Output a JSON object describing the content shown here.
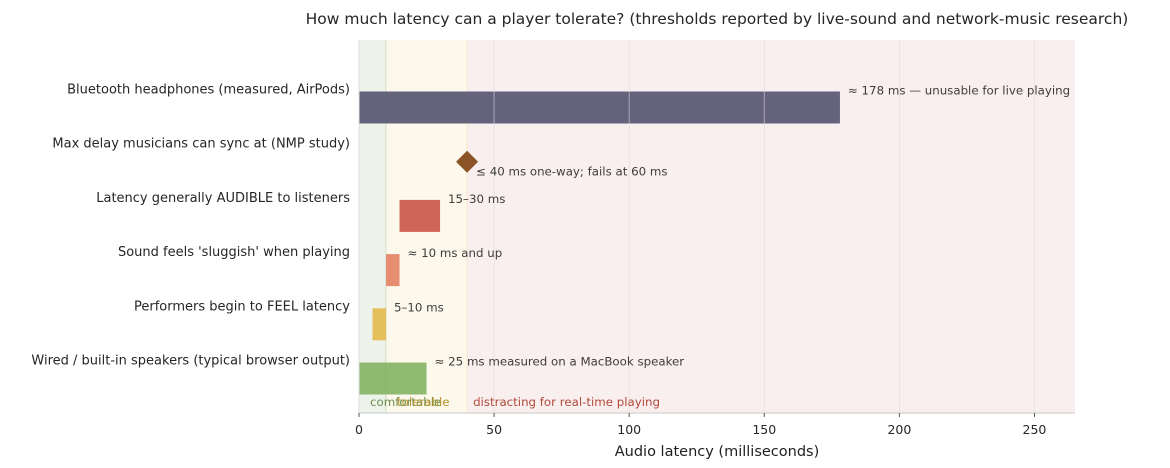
{
  "chart_data": {
    "type": "bar",
    "orientation": "horizontal",
    "title": "How much latency can a player tolerate?  (thresholds reported by live-sound and network-music research)",
    "xlabel": "Audio latency (milliseconds)",
    "ylabel": "",
    "xlim": [
      0,
      265
    ],
    "xticks": [
      0,
      50,
      100,
      150,
      200,
      250
    ],
    "grid": true,
    "zones": [
      {
        "label": "comfortable",
        "from": 0,
        "to": 10,
        "fill": "#6b9a5a",
        "text_color": "#6a8f4f"
      },
      {
        "label": "tolerable",
        "from": 10,
        "to": 40,
        "fill": "#e6c35a",
        "text_color": "#b8942e"
      },
      {
        "label": "distracting for real-time playing",
        "from": 40,
        "to": 265,
        "fill": "#d97a7a",
        "text_color": "#b04a3a"
      }
    ],
    "rows": [
      {
        "category": "Wired / built-in speakers (typical browser output)",
        "kind": "range",
        "start": 0,
        "end": 25,
        "color": "#8ab56a",
        "annotation": "≈ 25 ms measured on a MacBook speaker"
      },
      {
        "category": "Performers begin to FEEL latency",
        "kind": "range",
        "start": 5,
        "end": 10,
        "color": "#e4bc54",
        "annotation": "5–10 ms"
      },
      {
        "category": "Sound feels 'sluggish' when playing",
        "kind": "range",
        "start": 10,
        "end": 15,
        "color": "#e6886a",
        "annotation": "≈ 10 ms and up"
      },
      {
        "category": "Latency generally AUDIBLE to listeners",
        "kind": "range",
        "start": 15,
        "end": 30,
        "color": "#cf5d50",
        "annotation": "15–30 ms"
      },
      {
        "category": "Max delay musicians can sync at (NMP study)",
        "kind": "point",
        "value": 40,
        "color": "#8a5426",
        "annotation": "≤ 40 ms one-way; fails at 60 ms"
      },
      {
        "category": "Bluetooth headphones (measured, AirPods)",
        "kind": "range",
        "start": 0,
        "end": 178,
        "color": "#5d5a76",
        "annotation": "≈ 178 ms — unusable for live playing"
      }
    ]
  }
}
